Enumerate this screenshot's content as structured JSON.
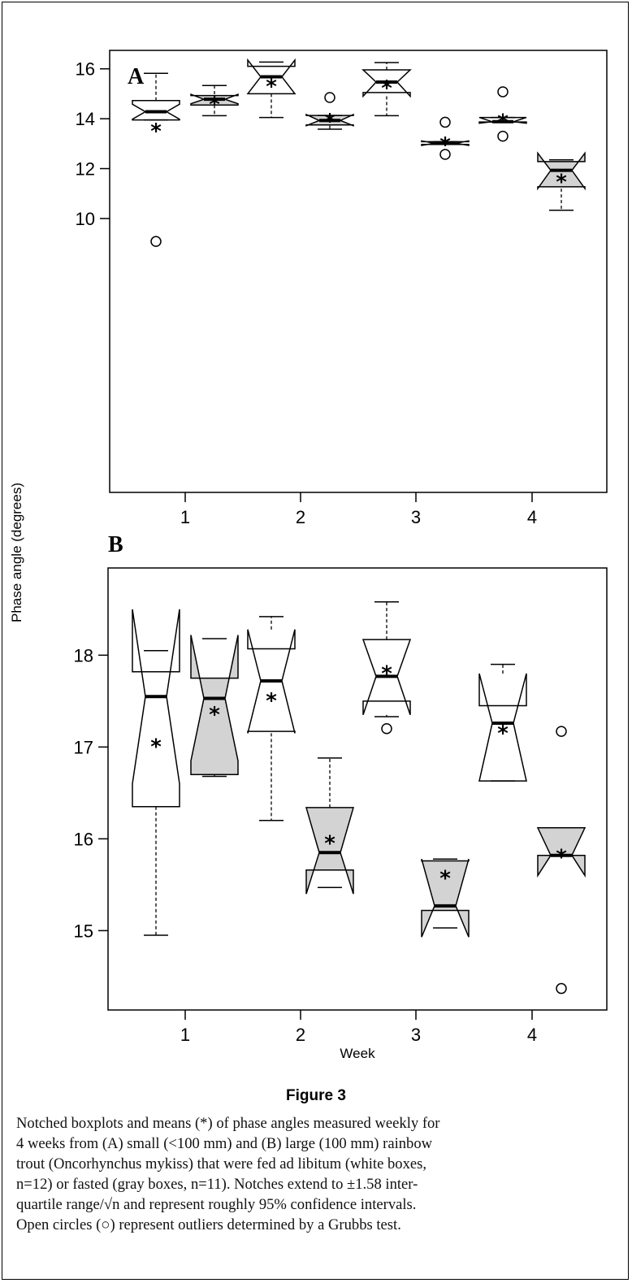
{
  "figure": {
    "ylabel": "Phase angle (degrees)",
    "xlabel": "Week"
  },
  "colors": {
    "fed": "#ffffff",
    "fasted": "#d3d3d3",
    "line": "#000000"
  },
  "chart_data": [
    {
      "type": "boxplot",
      "panel": "A",
      "xlabel": "",
      "ylabel": "Phase angle (degrees)",
      "x_ticks": [
        "1",
        "2",
        "3",
        "4"
      ],
      "y_ticks": [
        "10",
        "12",
        "14",
        "16"
      ],
      "ylim": [
        8.8,
        16.7
      ],
      "groups": [
        {
          "week": 1,
          "diet": "fed",
          "whisker_low": 13.95,
          "q1": 13.95,
          "median": 14.28,
          "q3": 14.73,
          "whisker_high": 15.82,
          "notch_low": 13.98,
          "notch_high": 14.58,
          "mean": 13.68,
          "outliers": [
            9.08
          ]
        },
        {
          "week": 1,
          "diet": "fasted",
          "whisker_low": 14.12,
          "q1": 14.55,
          "median": 14.78,
          "q3": 14.93,
          "whisker_high": 15.33,
          "notch_low": 14.6,
          "notch_high": 14.98,
          "mean": 14.76,
          "outliers": []
        },
        {
          "week": 2,
          "diet": "fed",
          "whisker_low": 14.05,
          "q1": 15.0,
          "median": 15.68,
          "q3": 16.1,
          "whisker_high": 16.27,
          "notch_low": 15.0,
          "notch_high": 16.35,
          "mean": 15.47,
          "outliers": []
        },
        {
          "week": 2,
          "diet": "fasted",
          "whisker_low": 13.58,
          "q1": 13.75,
          "median": 13.93,
          "q3": 14.13,
          "whisker_high": 14.13,
          "notch_low": 13.72,
          "notch_high": 14.17,
          "mean": 14.07,
          "outliers": [
            14.85
          ]
        },
        {
          "week": 3,
          "diet": "fed",
          "whisker_low": 14.12,
          "q1": 15.05,
          "median": 15.47,
          "q3": 15.96,
          "whisker_high": 16.25,
          "notch_low": 14.9,
          "notch_high": 15.96,
          "mean": 15.4,
          "outliers": []
        },
        {
          "week": 3,
          "diet": "fasted",
          "whisker_low": 12.97,
          "q1": 12.97,
          "median": 13.02,
          "q3": 13.08,
          "whisker_high": 13.08,
          "notch_low": 12.93,
          "notch_high": 13.11,
          "mean": 13.12,
          "outliers": [
            12.57,
            13.86
          ]
        },
        {
          "week": 4,
          "diet": "fed",
          "whisker_low": 13.87,
          "q1": 13.87,
          "median": 13.88,
          "q3": 14.05,
          "whisker_high": 14.05,
          "notch_low": 13.82,
          "notch_high": 14.05,
          "mean": 14.05,
          "outliers": [
            13.3,
            15.08
          ]
        },
        {
          "week": 4,
          "diet": "fasted",
          "whisker_low": 10.33,
          "q1": 11.27,
          "median": 11.93,
          "q3": 12.28,
          "whisker_high": 12.35,
          "notch_low": 11.2,
          "notch_high": 12.62,
          "mean": 11.65,
          "outliers": []
        }
      ]
    },
    {
      "type": "boxplot",
      "panel": "B",
      "xlabel": "Week",
      "ylabel": "Phase angle (degrees)",
      "x_ticks": [
        "1",
        "2",
        "3",
        "4"
      ],
      "y_ticks": [
        "15",
        "16",
        "17",
        "18"
      ],
      "ylim": [
        14.2,
        18.6
      ],
      "groups": [
        {
          "week": 1,
          "diet": "fed",
          "whisker_low": 14.95,
          "q1": 16.35,
          "median": 17.55,
          "q3": 17.82,
          "whisker_high": 18.05,
          "notch_low": 16.6,
          "notch_high": 18.5,
          "mean": 17.05,
          "outliers": []
        },
        {
          "week": 1,
          "diet": "fasted",
          "whisker_low": 16.68,
          "q1": 16.7,
          "median": 17.53,
          "q3": 17.75,
          "whisker_high": 18.18,
          "notch_low": 16.85,
          "notch_high": 18.22,
          "mean": 17.4,
          "outliers": []
        },
        {
          "week": 2,
          "diet": "fed",
          "whisker_low": 16.2,
          "q1": 17.17,
          "median": 17.72,
          "q3": 18.07,
          "whisker_high": 18.42,
          "notch_low": 17.15,
          "notch_high": 18.28,
          "mean": 17.55,
          "outliers": []
        },
        {
          "week": 2,
          "diet": "fasted",
          "whisker_low": 15.47,
          "q1": 15.66,
          "median": 15.85,
          "q3": 16.34,
          "whisker_high": 16.88,
          "notch_low": 15.4,
          "notch_high": 16.34,
          "mean": 16.0,
          "outliers": []
        },
        {
          "week": 3,
          "diet": "fed",
          "whisker_low": 17.33,
          "q1": 17.5,
          "median": 17.77,
          "q3": 18.17,
          "whisker_high": 18.58,
          "notch_low": 17.35,
          "notch_high": 18.17,
          "mean": 17.85,
          "outliers": [
            17.2
          ]
        },
        {
          "week": 3,
          "diet": "fasted",
          "whisker_low": 15.03,
          "q1": 15.22,
          "median": 15.27,
          "q3": 15.76,
          "whisker_high": 15.78,
          "notch_low": 14.93,
          "notch_high": 15.78,
          "mean": 15.62,
          "outliers": []
        },
        {
          "week": 4,
          "diet": "fed",
          "whisker_low": 16.63,
          "q1": 16.63,
          "median": 17.26,
          "q3": 17.45,
          "whisker_high": 17.9,
          "notch_low": 16.63,
          "notch_high": 17.8,
          "mean": 17.2,
          "outliers": []
        },
        {
          "week": 4,
          "diet": "fasted",
          "whisker_low": 15.82,
          "q1": 15.82,
          "median": 15.82,
          "q3": 16.12,
          "whisker_high": 16.12,
          "notch_low": 15.6,
          "notch_high": 16.12,
          "mean": 15.85,
          "outliers": [
            14.37,
            17.17
          ]
        }
      ]
    }
  ],
  "caption": {
    "title": "Figure 3",
    "lines": [
      "Notched boxplots and means (*) of phase angles measured weekly for",
      "4 weeks from (A) small (<100 mm) and (B) large (100 mm) rainbow",
      "trout (Oncorhynchus mykiss) that were fed ad libitum (white boxes,",
      "n=12) or fasted (gray boxes, n=11). Notches extend to ±1.58 inter-",
      "quartile range/√n and represent roughly 95% confidence intervals.",
      "Open circles (○) represent outliers determined by a Grubbs test."
    ]
  }
}
